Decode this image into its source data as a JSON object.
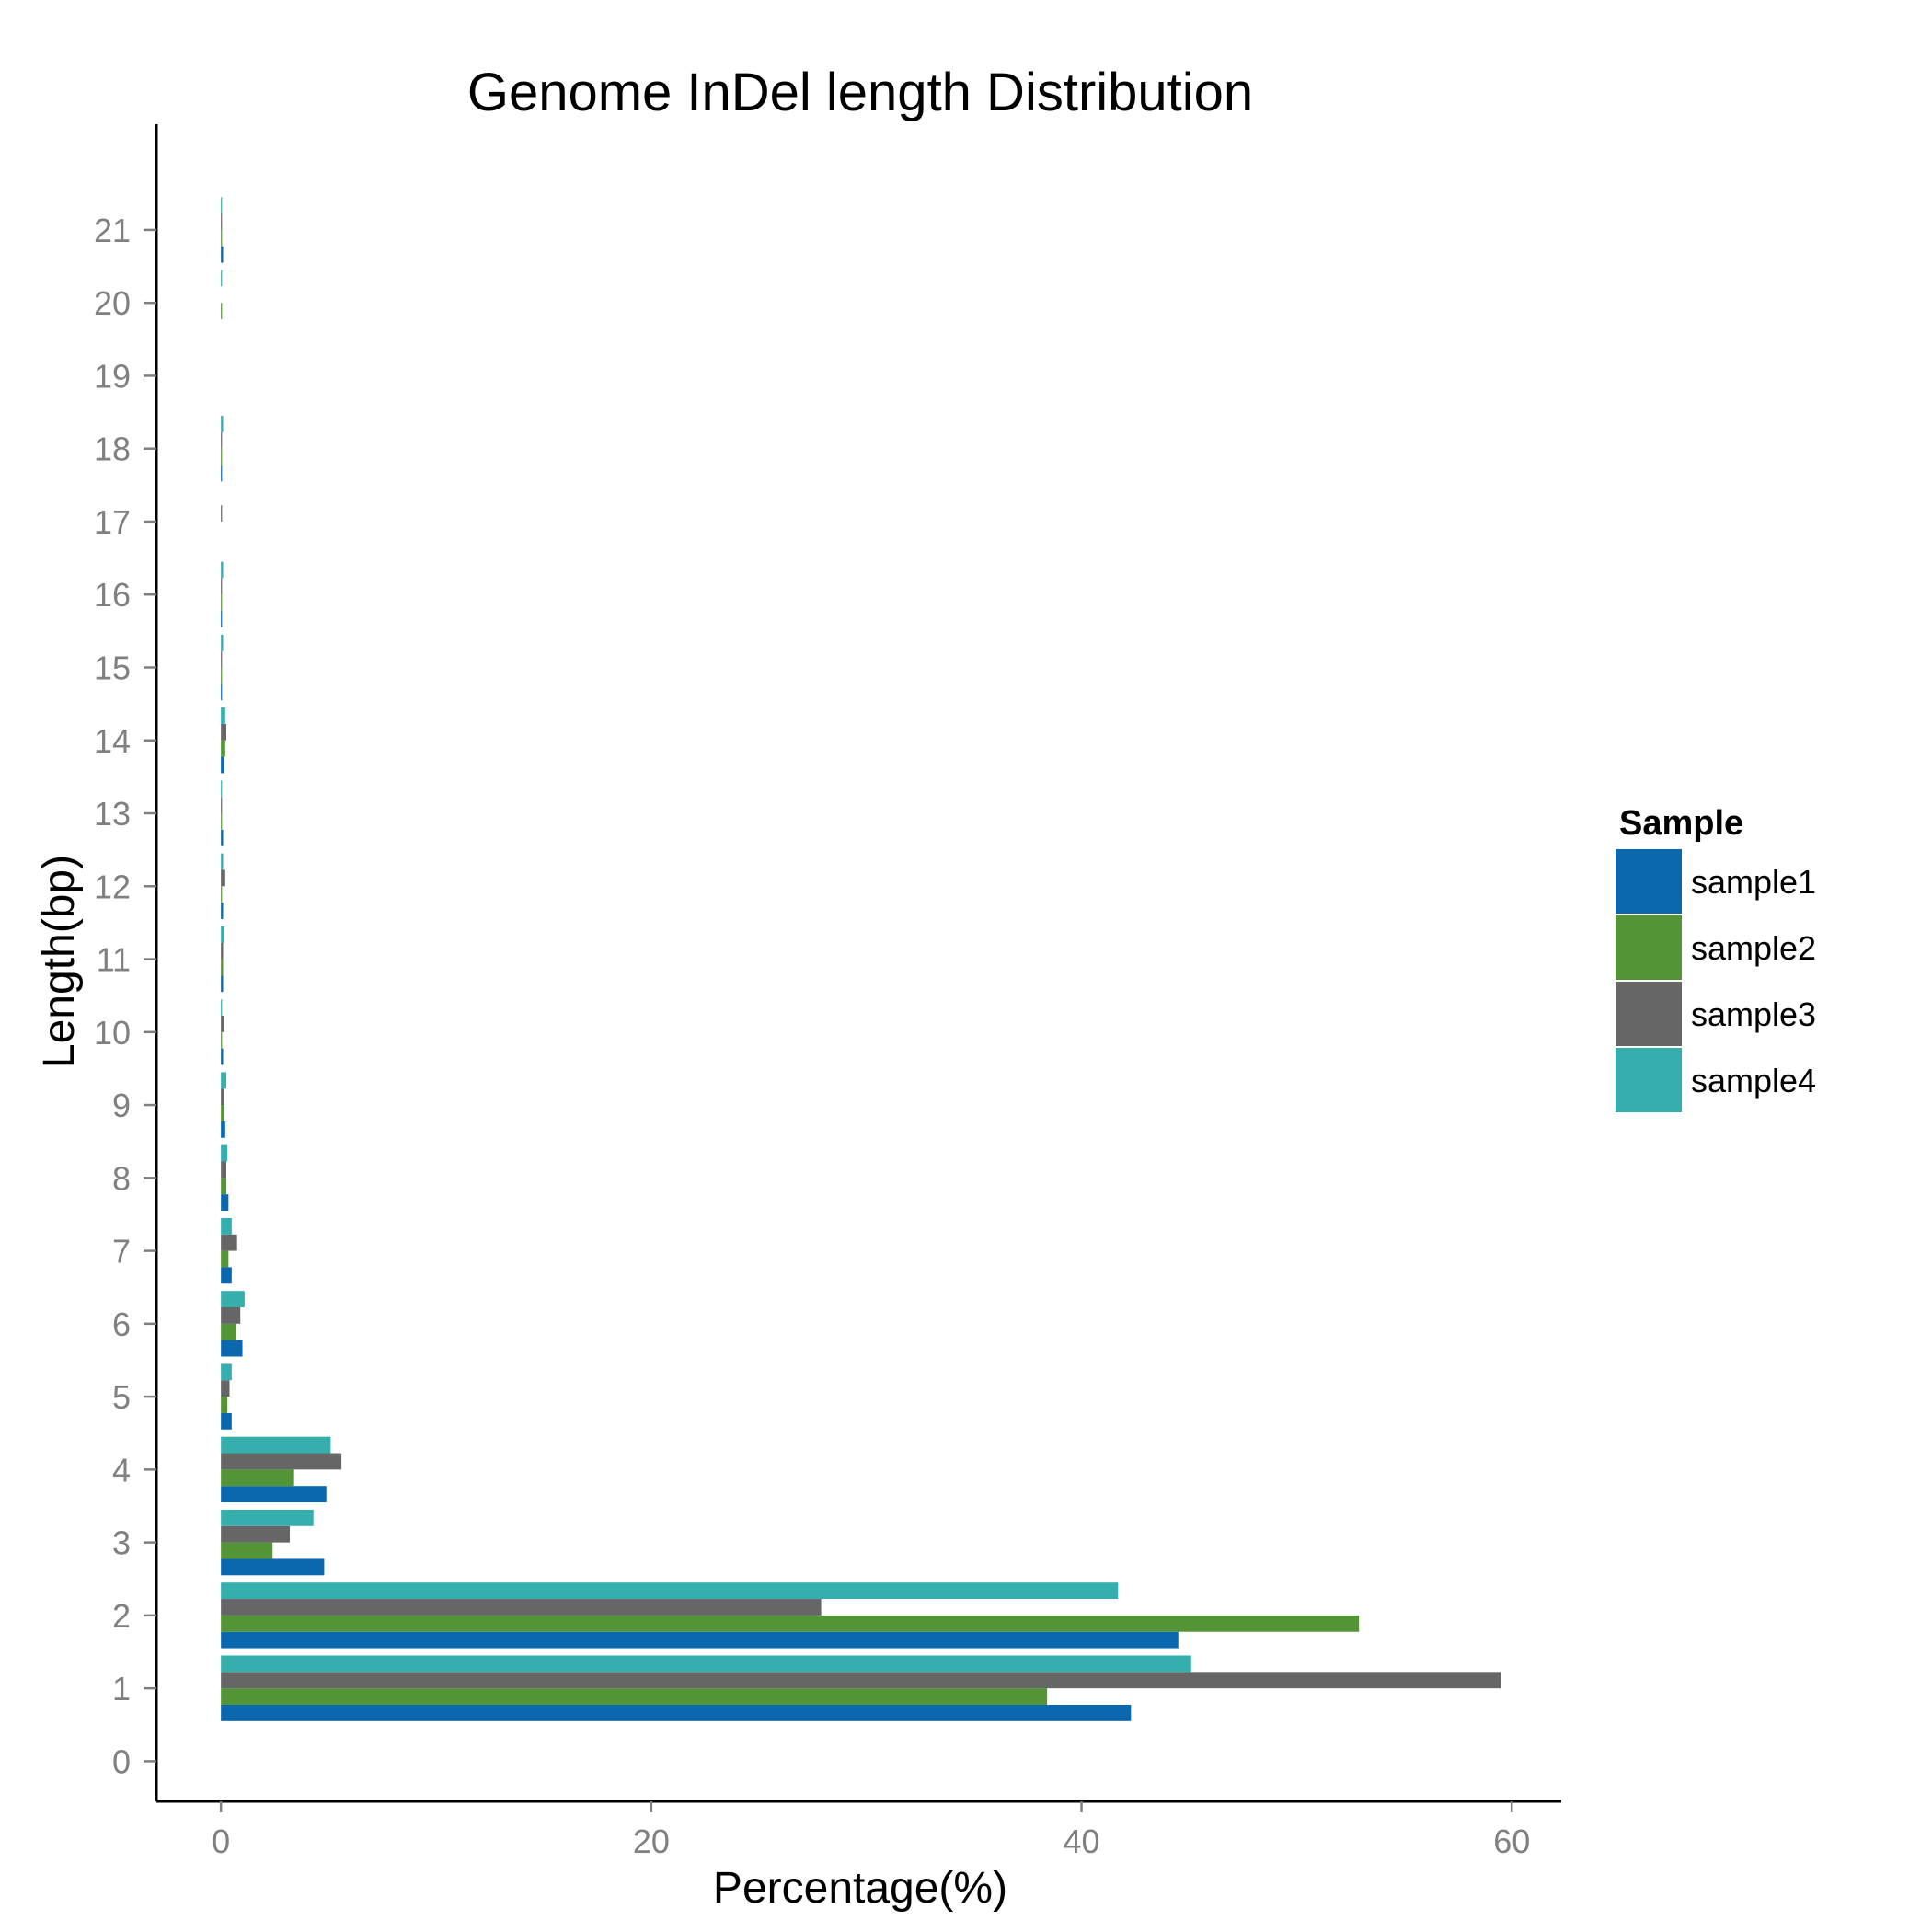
{
  "chart_data": {
    "type": "bar",
    "orientation": "horizontal",
    "title": "Genome InDel length Distribution",
    "xlabel": "Percentage(%)",
    "ylabel": "Length(bp)",
    "xlim": [
      -3,
      62.3
    ],
    "x_ticks": [
      0,
      20,
      40,
      60
    ],
    "y_ticks": [
      0,
      1,
      2,
      3,
      4,
      5,
      6,
      7,
      8,
      9,
      10,
      11,
      12,
      13,
      14,
      15,
      16,
      17,
      18,
      19,
      20,
      21
    ],
    "ylim": [
      -0.55,
      22.45
    ],
    "grid": false,
    "legend": {
      "title": "Sample",
      "position": "right"
    },
    "series": [
      {
        "name": "sample1",
        "color": "#0B68AE",
        "values": [
          0,
          42.3,
          44.5,
          4.8,
          4.9,
          0.5,
          1.0,
          0.5,
          0.35,
          0.2,
          0.1,
          0.1,
          0.1,
          0.1,
          0.15,
          0.05,
          0.05,
          0,
          0.05,
          0,
          0,
          0.1
        ]
      },
      {
        "name": "sample2",
        "color": "#539536",
        "values": [
          0,
          38.4,
          52.9,
          2.4,
          3.4,
          0.3,
          0.7,
          0.35,
          0.25,
          0.15,
          0.05,
          0.1,
          0.05,
          0.05,
          0.2,
          0.05,
          0.05,
          0,
          0.05,
          0,
          0.05,
          0.05
        ]
      },
      {
        "name": "sample3",
        "color": "#666666",
        "values": [
          0,
          59.5,
          27.9,
          3.2,
          5.6,
          0.4,
          0.9,
          0.75,
          0.25,
          0.15,
          0.15,
          0.1,
          0.2,
          0.05,
          0.25,
          0.05,
          0.05,
          0.05,
          0.05,
          0,
          0,
          0.05
        ]
      },
      {
        "name": "sample4",
        "color": "#35AFAD",
        "values": [
          0,
          45.1,
          41.7,
          4.3,
          5.1,
          0.5,
          1.1,
          0.5,
          0.3,
          0.25,
          0.05,
          0.15,
          0.1,
          0.05,
          0.2,
          0.1,
          0.1,
          0,
          0.1,
          0,
          0.05,
          0.05
        ]
      }
    ]
  }
}
